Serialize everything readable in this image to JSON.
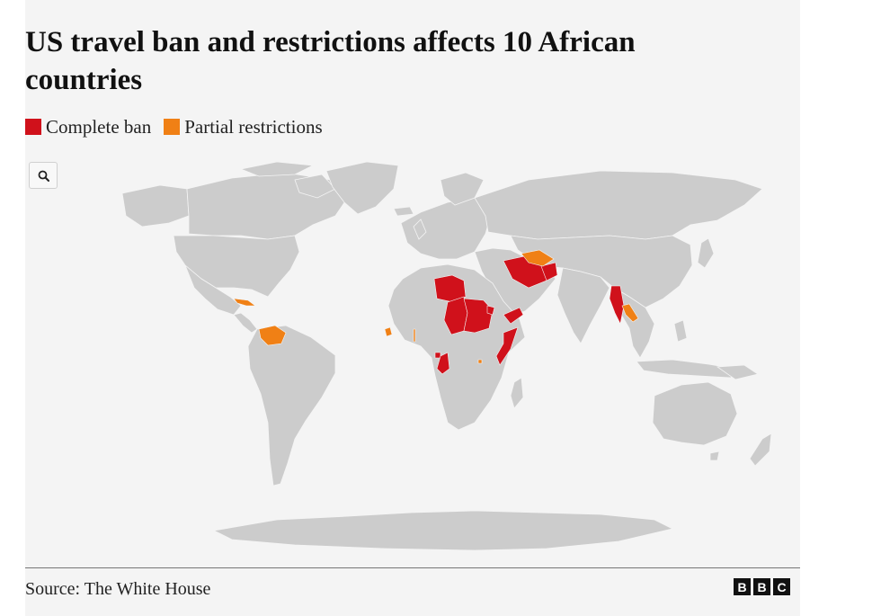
{
  "title": "US travel ban and restrictions affects 10 African countries",
  "legend": {
    "items": [
      {
        "label": "Complete ban",
        "color": "#d0111b"
      },
      {
        "label": "Partial restrictions",
        "color": "#f08015"
      }
    ]
  },
  "search": {
    "icon": "search-icon"
  },
  "map": {
    "land_color": "#cccccc",
    "background": "#f4f4f4"
  },
  "footer": {
    "source": "Source: The White House",
    "logo_letters": [
      "B",
      "B",
      "C"
    ]
  }
}
